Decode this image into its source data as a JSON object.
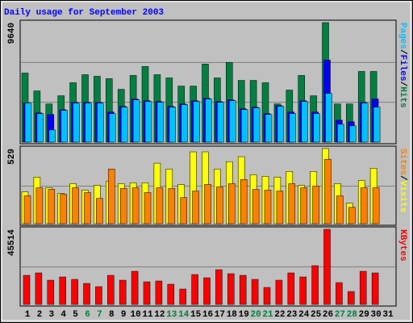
{
  "chart_data": [
    {
      "type": "bar",
      "title": "Daily usage for September 2003",
      "legend_separator": "/",
      "ylim": [
        0,
        9640
      ],
      "yticks": [
        9640
      ],
      "series": [
        {
          "name": "Hits",
          "color": "#008040",
          "values": [
            5570,
            4130,
            3080,
            3740,
            4790,
            5440,
            5310,
            5120,
            4260,
            5380,
            6100,
            5440,
            5180,
            4520,
            4520,
            6300,
            5180,
            6430,
            4980,
            4980,
            4790,
            3080,
            4200,
            5380,
            3740,
            9640,
            3080,
            3080,
            5700,
            5700,
            null
          ]
        },
        {
          "name": "Files",
          "color": "#0000ff",
          "values": [
            3150,
            2360,
            2230,
            2620,
            3210,
            3210,
            3210,
            2430,
            2890,
            3480,
            3340,
            3280,
            2890,
            3080,
            3340,
            3540,
            3280,
            3410,
            2690,
            2820,
            2300,
            2950,
            2430,
            3340,
            2430,
            6620,
            1770,
            1640,
            3210,
            3480,
            null
          ]
        },
        {
          "name": "Pages",
          "color": "#00c0ff",
          "values": [
            3150,
            2300,
            980,
            2560,
            3150,
            3150,
            3150,
            2300,
            2820,
            3410,
            3280,
            3210,
            2820,
            3020,
            3280,
            3480,
            3210,
            3340,
            2620,
            2760,
            2230,
            2890,
            2300,
            3280,
            2300,
            3930,
            1440,
            1310,
            3150,
            2820,
            null
          ]
        }
      ]
    },
    {
      "type": "bar",
      "ylim": [
        0,
        529
      ],
      "yticks": [
        529
      ],
      "series": [
        {
          "name": "Visits",
          "color": "#ffff00",
          "values": [
            224,
            328,
            253,
            213,
            282,
            236,
            270,
            299,
            282,
            288,
            288,
            426,
            385,
            276,
            506,
            506,
            385,
            437,
            472,
            345,
            334,
            328,
            368,
            270,
            368,
            529,
            282,
            144,
            305,
            391,
            null
          ]
        },
        {
          "name": "Sites",
          "color": "#ff8000",
          "values": [
            196,
            253,
            242,
            207,
            253,
            219,
            178,
            385,
            248,
            253,
            219,
            253,
            248,
            184,
            230,
            276,
            259,
            282,
            311,
            242,
            236,
            230,
            282,
            253,
            265,
            454,
            196,
            115,
            253,
            253,
            null
          ]
        }
      ]
    },
    {
      "type": "bar",
      "ylim": [
        0,
        45514
      ],
      "yticks": [
        45514
      ],
      "categories": [
        "1",
        "2",
        "3",
        "4",
        "5",
        "6",
        "7",
        "8",
        "9",
        "10",
        "11",
        "12",
        "13",
        "14",
        "15",
        "16",
        "17",
        "18",
        "19",
        "20",
        "21",
        "22",
        "23",
        "24",
        "25",
        "26",
        "27",
        "28",
        "29",
        "30",
        "31"
      ],
      "label_color": "#000000",
      "weekend_label_color": "#008040",
      "weekend_days": [
        6,
        7,
        13,
        14,
        20,
        21,
        27,
        28
      ],
      "series": [
        {
          "name": "KBytes",
          "color": "#ff0000",
          "values": [
            17620,
            19090,
            14680,
            16640,
            15170,
            12720,
            10770,
            17620,
            14680,
            20070,
            13700,
            14190,
            12240,
            9300,
            18110,
            16150,
            21050,
            18600,
            17620,
            15170,
            10280,
            14680,
            19090,
            16640,
            23490,
            45514,
            13210,
            7830,
            20070,
            19090,
            null
          ]
        }
      ]
    }
  ]
}
